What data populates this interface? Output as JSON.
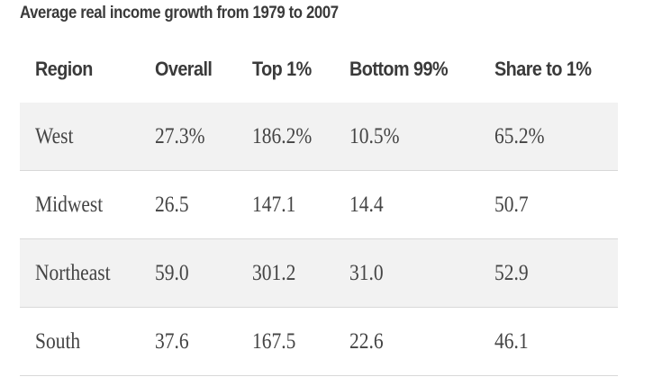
{
  "title": "Average real income growth from 1979 to 2007",
  "chart_data": {
    "type": "table",
    "title": "Average real income growth from 1979 to 2007",
    "columns": [
      "Region",
      "Overall",
      "Top 1%",
      "Bottom 99%",
      "Share to 1%"
    ],
    "rows": [
      [
        "West",
        "27.3%",
        "186.2%",
        "10.5%",
        "65.2%"
      ],
      [
        "Midwest",
        "26.5",
        "147.1",
        "14.4",
        "50.7"
      ],
      [
        "Northeast",
        "59.0",
        "301.2",
        "31.0",
        "52.9"
      ],
      [
        "South",
        "37.6",
        "167.5",
        "22.6",
        "46.1"
      ]
    ]
  },
  "colors": {
    "shaded_row": "#f2f2f2",
    "divider": "#d8d8d8",
    "text": "#444444"
  }
}
